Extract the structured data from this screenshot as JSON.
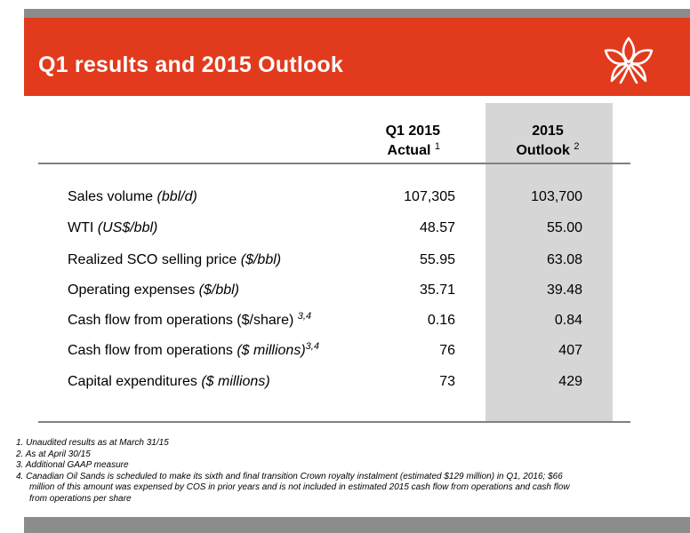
{
  "slide": {
    "title": "Q1 results and 2015 Outlook"
  },
  "columns": {
    "actual": {
      "line1": "Q1 2015",
      "line2": "Actual",
      "footnote": "1"
    },
    "outlook": {
      "line1": "2015",
      "line2": "Outlook",
      "footnote": "2"
    }
  },
  "rows": [
    {
      "label_plain": "Sales volume ",
      "label_italic": "(bbl/d)",
      "label_sup": "",
      "actual": "107,305",
      "outlook": "103,700"
    },
    {
      "label_plain": "WTI ",
      "label_italic": "(US$/bbl)",
      "label_sup": "",
      "actual": "48.57",
      "outlook": "55.00"
    },
    {
      "label_plain": "Realized SCO selling price ",
      "label_italic": "($/bbl)",
      "label_sup": "",
      "actual": "55.95",
      "outlook": "63.08"
    },
    {
      "label_plain": "Operating expenses ",
      "label_italic": "($/bbl)",
      "label_sup": "",
      "actual": "35.71",
      "outlook": "39.48"
    },
    {
      "label_plain": "Cash flow from operations ($/share) ",
      "label_italic": "",
      "label_sup": "3,4",
      "actual": "0.16",
      "outlook": "0.84"
    },
    {
      "label_plain": "Cash flow from operations ",
      "label_italic": "($ millions)",
      "label_sup": "3,4",
      "actual": "76",
      "outlook": "407"
    },
    {
      "label_plain": "Capital expenditures ",
      "label_italic": "($ millions)",
      "label_sup": "",
      "actual": "73",
      "outlook": "429"
    }
  ],
  "footnotes": [
    "1. Unaudited results as at March 31/15",
    "2. As at April 30/15",
    "3. Additional GAAP measure",
    "4. Canadian Oil Sands is scheduled to make its sixth and final transition Crown royalty instalment (estimated $129 million) in Q1, 2016; $66",
    "million of this amount was expensed by COS in prior years and is not included in estimated 2015 cash flow from operations and cash flow",
    "from operations per share"
  ],
  "colors": {
    "accent": "#e23a1c",
    "bar": "#8c8c8c",
    "shade": "#d6d6d6"
  },
  "icons": {
    "logo": "flower-logo-icon"
  }
}
